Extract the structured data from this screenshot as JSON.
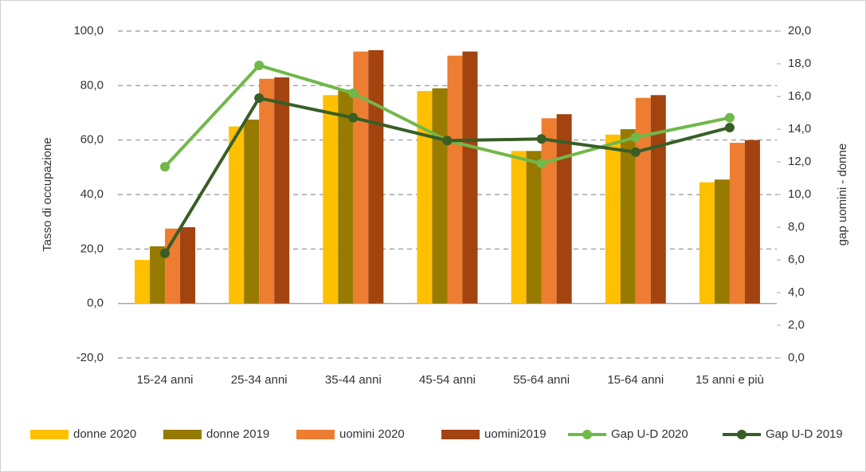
{
  "chart_data": {
    "type": "bar_line",
    "categories": [
      "15-24 anni",
      "25-34 anni",
      "35-44 anni",
      "45-54 anni",
      "55-64 anni",
      "15-64 anni",
      "15 anni e più"
    ],
    "ylabel": "Tasso di occupazione",
    "y2label": "gap uomini - donne",
    "ylim": [
      -20,
      100
    ],
    "yticks": [
      {
        "value": -20,
        "label": "-20,0"
      },
      {
        "value": 0,
        "label": "0,0"
      },
      {
        "value": 20,
        "label": "20,0"
      },
      {
        "value": 40,
        "label": "40,0"
      },
      {
        "value": 60,
        "label": "60,0"
      },
      {
        "value": 80,
        "label": "80,0"
      },
      {
        "value": 100,
        "label": "100,0"
      }
    ],
    "y2lim": [
      0,
      20
    ],
    "y2ticks": [
      {
        "value": 0,
        "label": "0,0"
      },
      {
        "value": 2,
        "label": "2,0"
      },
      {
        "value": 4,
        "label": "4,0"
      },
      {
        "value": 6,
        "label": "6,0"
      },
      {
        "value": 8,
        "label": "8,0"
      },
      {
        "value": 10,
        "label": "10,0"
      },
      {
        "value": 12,
        "label": "12,0"
      },
      {
        "value": 14,
        "label": "14,0"
      },
      {
        "value": 16,
        "label": "16,0"
      },
      {
        "value": 18,
        "label": "18,0"
      },
      {
        "value": 20,
        "label": "20,0"
      }
    ],
    "grid": true,
    "legend": "bottom",
    "series": [
      {
        "name": "donne 2020",
        "type": "bar",
        "color": "#ffc000",
        "values": [
          16,
          65,
          76.5,
          78,
          56,
          62,
          44.5
        ]
      },
      {
        "name": "donne 2019",
        "type": "bar",
        "color": "#977b00",
        "values": [
          21,
          67.5,
          78.5,
          79,
          56,
          64,
          45.5
        ]
      },
      {
        "name": "uomini 2020",
        "type": "bar",
        "color": "#ed7d31",
        "values": [
          27.5,
          82.5,
          92.5,
          91,
          68,
          75.5,
          59
        ]
      },
      {
        "name": "uomini2019",
        "type": "bar",
        "color": "#a3430f",
        "values": [
          28,
          83,
          93,
          92.5,
          69.5,
          76.5,
          60
        ]
      },
      {
        "name": "Gap U-D 2020",
        "type": "line",
        "axis": "y2",
        "color": "#70b84a",
        "values": [
          11.7,
          17.9,
          16.2,
          13.3,
          11.9,
          13.5,
          14.7
        ]
      },
      {
        "name": "Gap U-D 2019",
        "type": "line",
        "axis": "y2",
        "color": "#385e25",
        "values": [
          6.4,
          15.9,
          14.7,
          13.3,
          13.4,
          12.6,
          14.1
        ]
      }
    ]
  }
}
